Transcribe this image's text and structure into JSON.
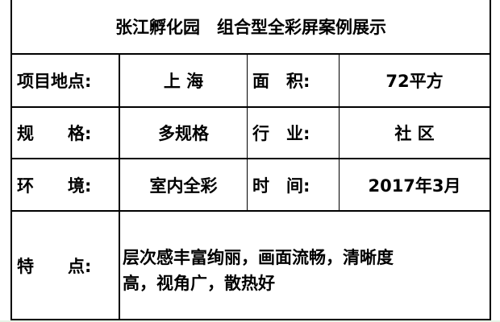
{
  "title": "张江孵化园　组合型全彩屏案例展示",
  "rows": [
    {
      "label1": "项目地点:",
      "value1": "上 海",
      "label2": "面　积:",
      "value2": "72平方"
    },
    {
      "label1": "规　　格:",
      "value1": "多规格",
      "label2": "行　业:",
      "value2": "社 区"
    },
    {
      "label1": "环　　境:",
      "value1": "室内全彩",
      "label2": "时　间:",
      "value2": "2017年3月"
    }
  ],
  "feature": {
    "label": "特　　点:",
    "value_line1": "层次感丰富绚丽，画面流畅，清晰度",
    "value_line2": "高，视角广，散热好"
  }
}
